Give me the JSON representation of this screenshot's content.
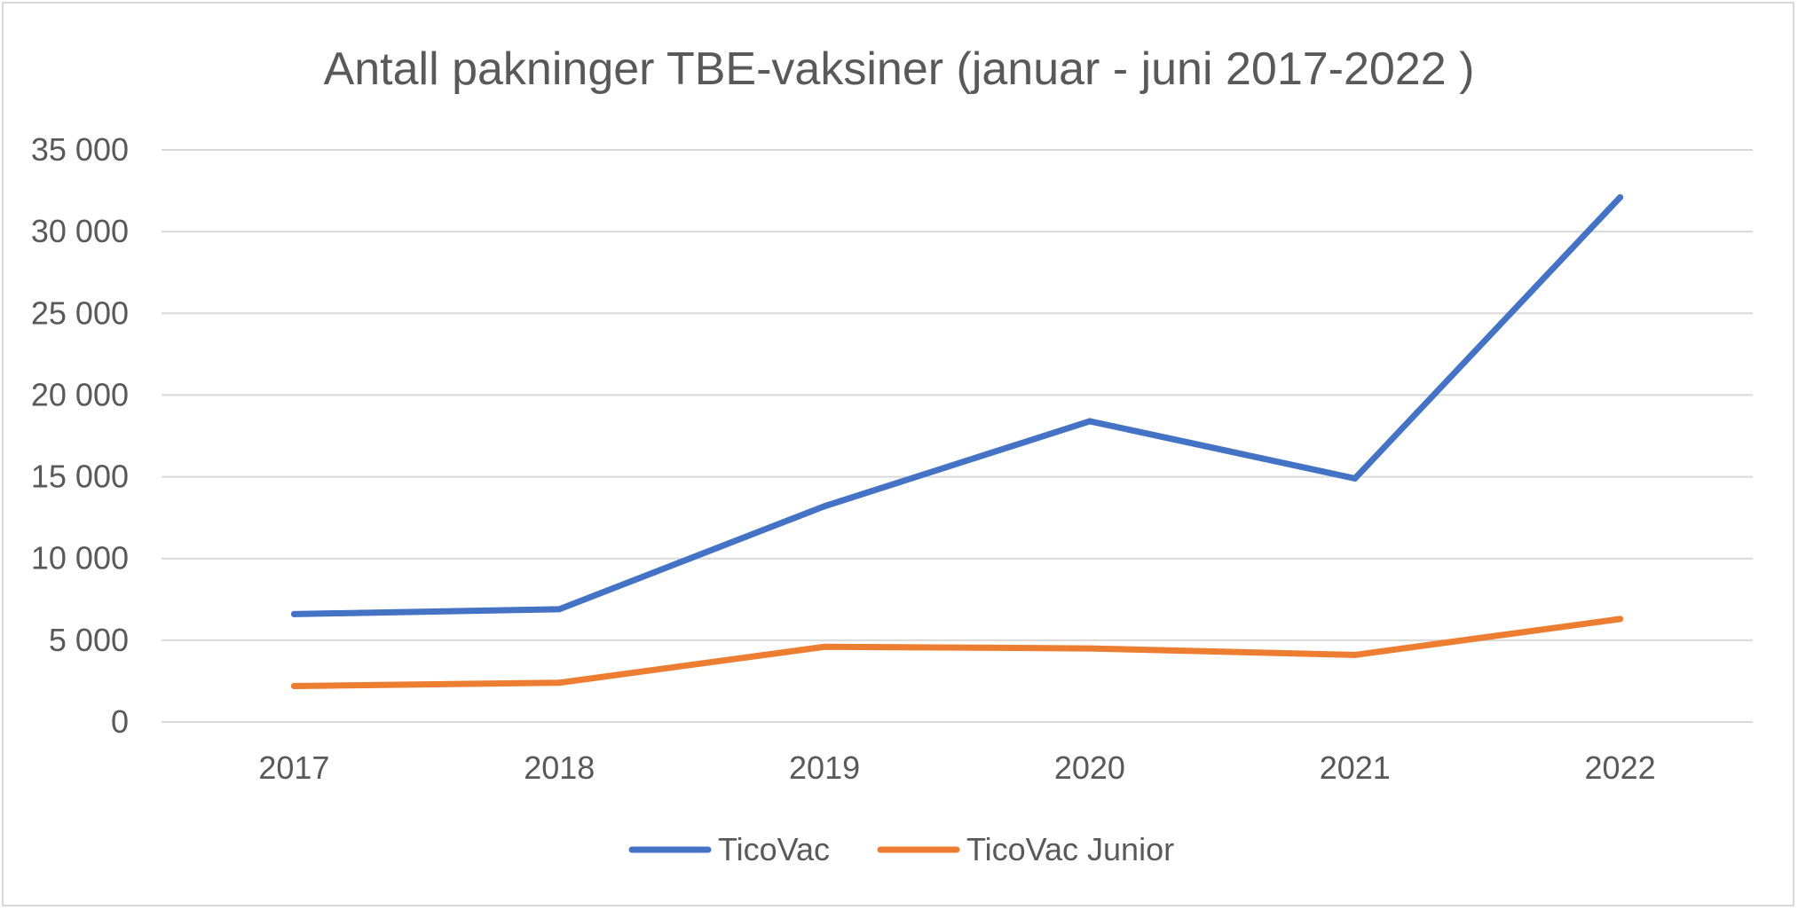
{
  "chart_data": {
    "type": "line",
    "title": "Antall pakninger TBE-vaksiner (januar - juni 2017-2022 )",
    "xlabel": "",
    "ylabel": "",
    "categories": [
      "2017",
      "2018",
      "2019",
      "2020",
      "2021",
      "2022"
    ],
    "ylim": [
      0,
      35000
    ],
    "yticks": [
      0,
      5000,
      10000,
      15000,
      20000,
      25000,
      30000,
      35000
    ],
    "ytick_labels": [
      "0",
      "5 000",
      "10 000",
      "15 000",
      "20 000",
      "25 000",
      "30 000",
      "35 000"
    ],
    "grid": true,
    "legend_position": "bottom",
    "series": [
      {
        "name": "TicoVac",
        "color": "#4472c4",
        "values": [
          6600,
          6900,
          13200,
          18400,
          14900,
          32100
        ]
      },
      {
        "name": "TicoVac Junior",
        "color": "#ed7d31",
        "values": [
          2200,
          2400,
          4600,
          4500,
          4100,
          6300
        ]
      }
    ]
  }
}
